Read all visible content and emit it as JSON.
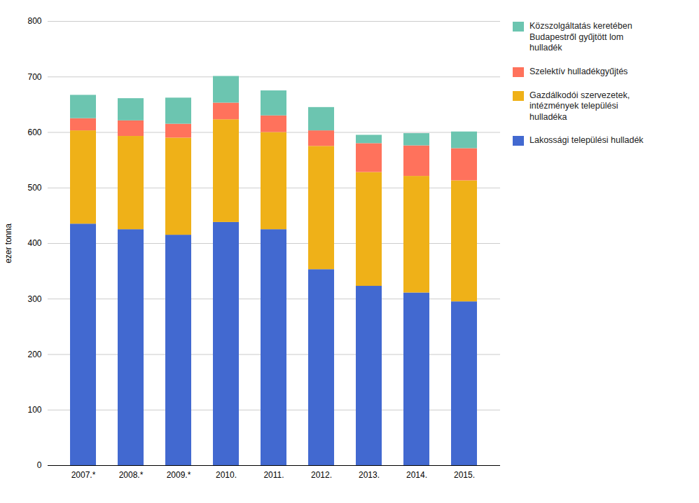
{
  "chart_data": {
    "type": "bar",
    "stacked": true,
    "categories": [
      "2007.*",
      "2008.*",
      "2009.*",
      "2010.",
      "2011.",
      "2012.",
      "2013.",
      "2014.",
      "2015."
    ],
    "series": [
      {
        "name": "Lakossági települési hulladék",
        "values": [
          435,
          425,
          415,
          438,
          425,
          353,
          323,
          311,
          295
        ]
      },
      {
        "name": "Gazdálkodói szervezetek,\nintézmények települési\nhulladéka",
        "values": [
          168,
          168,
          175,
          185,
          175,
          222,
          205,
          210,
          218
        ]
      },
      {
        "name": "Szelektív hulladékgyűjtés",
        "values": [
          22,
          28,
          25,
          30,
          30,
          28,
          52,
          55,
          58
        ]
      },
      {
        "name": "Közszolgáltatás keretében\nBudapestről gyűjtött lom\nhulladék",
        "values": [
          42,
          40,
          47,
          48,
          45,
          42,
          15,
          22,
          30
        ]
      }
    ],
    "ylabel": "ezer tonna",
    "ylim": [
      0,
      800
    ],
    "yticks": [
      0,
      100,
      200,
      300,
      400,
      500,
      600,
      700,
      800
    ],
    "grid": true,
    "legend": "right"
  }
}
